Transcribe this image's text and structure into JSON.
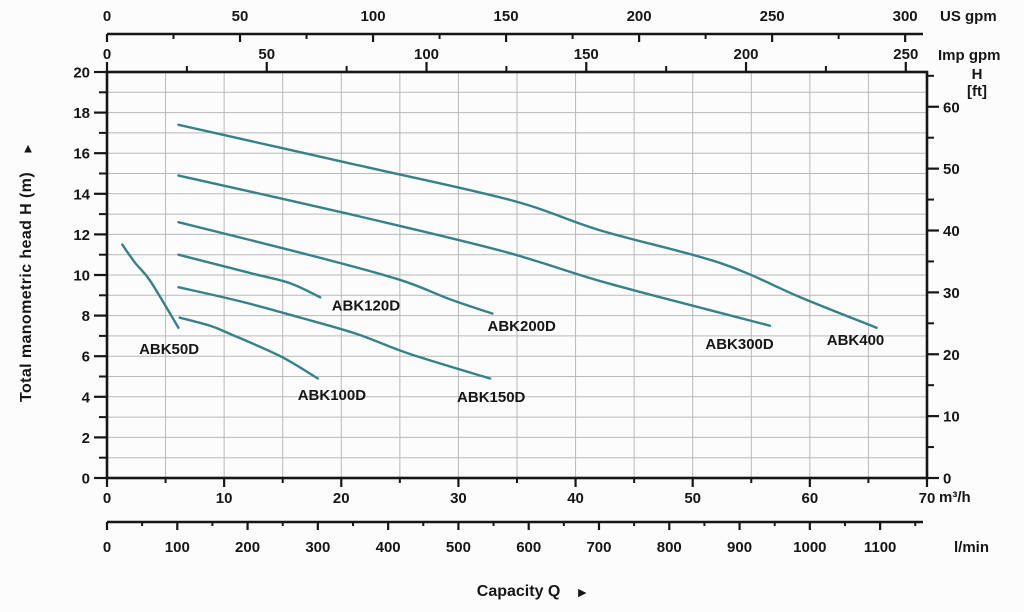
{
  "chart_data": {
    "type": "line",
    "title": "",
    "xlabel": "Capacity Q",
    "ylabel": "Total manometric head H (m)",
    "curve_color": "#35828a",
    "grid": true,
    "axes": {
      "m3h": {
        "unit": "m³/h",
        "min": 0,
        "max": 70,
        "major": [
          0,
          10,
          20,
          30,
          40,
          50,
          60,
          70
        ],
        "minor_step": 5,
        "minor_max": 65
      },
      "lmin": {
        "unit": "l/min",
        "min": 0,
        "max": 1160,
        "major": [
          0,
          100,
          200,
          300,
          400,
          500,
          600,
          700,
          800,
          900,
          1000,
          1100
        ],
        "minor_step": 50,
        "minor_max": 1150
      },
      "us_gpm": {
        "unit": "US gpm",
        "min": 0,
        "max": 306,
        "major": [
          0,
          50,
          100,
          150,
          200,
          250,
          300
        ],
        "minor_step": 25,
        "minor_max": 275
      },
      "imp_gpm": {
        "unit": "Imp gpm",
        "min": 0,
        "max": 256,
        "major": [
          0,
          50,
          100,
          150,
          200,
          250
        ],
        "minor_step": 25,
        "minor_max": 225
      },
      "head_m": {
        "unit": "m",
        "min": 0,
        "max": 20,
        "major": [
          0,
          2,
          4,
          6,
          8,
          10,
          12,
          14,
          16,
          18,
          20
        ],
        "minor_step": 1,
        "minor_max": 19
      },
      "head_ft": {
        "unit": "H [ft]",
        "min": 0,
        "max": 65,
        "major": [
          0,
          10,
          20,
          30,
          40,
          50,
          60
        ],
        "minor_step": 5,
        "minor_max": 65
      }
    },
    "series": [
      {
        "name": "ABK50D",
        "points": [
          [
            1.3,
            11.5
          ],
          [
            2.4,
            10.6
          ],
          [
            3.7,
            9.7
          ],
          [
            6.1,
            7.4
          ]
        ],
        "label_at": [
          5.3,
          6.35
        ]
      },
      {
        "name": "ABK100D",
        "points": [
          [
            6.2,
            7.9
          ],
          [
            8.8,
            7.5
          ],
          [
            10.5,
            7.1
          ],
          [
            14.8,
            6.0
          ],
          [
            18.0,
            4.9
          ]
        ],
        "label_at": [
          19.2,
          4.1
        ]
      },
      {
        "name": "ABK120D",
        "points": [
          [
            6.1,
            11.0
          ],
          [
            12.2,
            10.1
          ],
          [
            15.6,
            9.6
          ],
          [
            18.2,
            8.9
          ]
        ],
        "label_at": [
          22.1,
          8.5
        ]
      },
      {
        "name": "ABK150D",
        "points": [
          [
            6.1,
            9.4
          ],
          [
            11.4,
            8.7
          ],
          [
            16.5,
            7.9
          ],
          [
            21.3,
            7.1
          ],
          [
            25.9,
            6.1
          ],
          [
            32.7,
            4.9
          ]
        ],
        "label_at": [
          32.8,
          4.0
        ]
      },
      {
        "name": "ABK200D",
        "points": [
          [
            6.1,
            12.6
          ],
          [
            16.5,
            11.1
          ],
          [
            24.8,
            9.8
          ],
          [
            29.3,
            8.8
          ],
          [
            32.9,
            8.1
          ]
        ],
        "label_at": [
          35.4,
          7.5
        ]
      },
      {
        "name": "ABK300D",
        "points": [
          [
            6.1,
            14.9
          ],
          [
            20.7,
            13.0
          ],
          [
            33.6,
            11.2
          ],
          [
            42.1,
            9.7
          ],
          [
            50.6,
            8.4
          ],
          [
            56.6,
            7.5
          ]
        ],
        "label_at": [
          54.0,
          6.6
        ]
      },
      {
        "name": "ABK400",
        "points": [
          [
            6.1,
            17.4
          ],
          [
            20.7,
            15.5
          ],
          [
            34.4,
            13.7
          ],
          [
            42.1,
            12.2
          ],
          [
            52.3,
            10.6
          ],
          [
            59.2,
            8.9
          ],
          [
            65.7,
            7.4
          ]
        ],
        "label_at": [
          63.9,
          6.8
        ]
      }
    ]
  },
  "labels": {
    "y_title": "Total manometric head H (m)",
    "y_title_arrow": "▲",
    "x_title": "Capacity Q",
    "x_title_arrow": "►",
    "ft_line1": "H",
    "ft_line2": "[ft]"
  },
  "colors": {
    "curve": "#35828a",
    "grid": "#b9b9b9",
    "axis": "#161616"
  }
}
